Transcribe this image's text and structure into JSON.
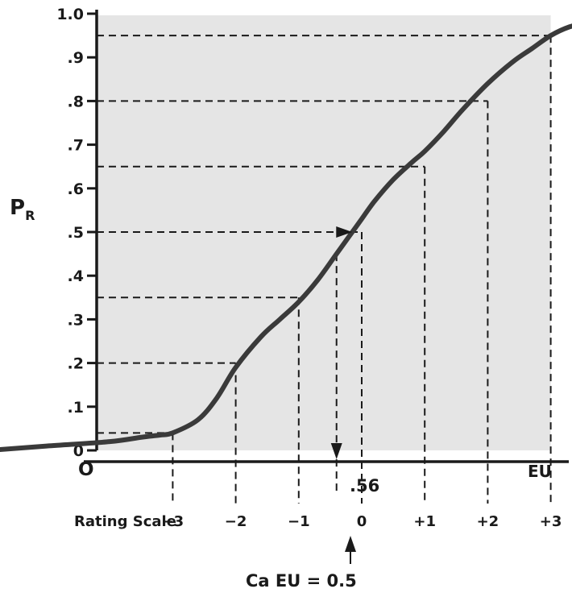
{
  "chart_data": {
    "type": "line",
    "ylabel_main": "P",
    "ylabel_sub": "R",
    "xlabel": "EU",
    "origin_label": "O",
    "y_ticks": [
      {
        "value": 0.0,
        "label": "0"
      },
      {
        "value": 0.1,
        "label": ".1"
      },
      {
        "value": 0.2,
        "label": ".2"
      },
      {
        "value": 0.3,
        "label": ".3"
      },
      {
        "value": 0.4,
        "label": ".4"
      },
      {
        "value": 0.5,
        "label": ".5"
      },
      {
        "value": 0.6,
        "label": ".6"
      },
      {
        "value": 0.7,
        "label": ".7"
      },
      {
        "value": 0.8,
        "label": ".8"
      },
      {
        "value": 0.9,
        "label": ".9"
      },
      {
        "value": 1.0,
        "label": "1.0"
      }
    ],
    "ylim": [
      0,
      1.0
    ],
    "xlim": [
      -5.9,
      4.4
    ],
    "curve": {
      "x": [
        -5.9,
        -5.0,
        -4.0,
        -3.5,
        -3.2,
        -3.0,
        -2.6,
        -2.3,
        -2.0,
        -1.6,
        -1.3,
        -1.0,
        -0.7,
        -0.4,
        -0.2,
        0.0,
        0.2,
        0.5,
        0.8,
        1.0,
        1.3,
        1.6,
        2.0,
        2.4,
        2.7,
        3.0,
        3.3,
        3.6,
        3.9,
        4.2
      ],
      "y": [
        0.0,
        0.01,
        0.02,
        0.03,
        0.035,
        0.04,
        0.07,
        0.12,
        0.19,
        0.26,
        0.3,
        0.34,
        0.39,
        0.45,
        0.49,
        0.53,
        0.57,
        0.62,
        0.66,
        0.685,
        0.73,
        0.78,
        0.84,
        0.89,
        0.92,
        0.95,
        0.97,
        0.98,
        0.99,
        0.99
      ]
    },
    "rating_scale_label": "Rating Scale",
    "rating_points": [
      {
        "eu": -3,
        "p": 0.04,
        "label": "−3"
      },
      {
        "eu": -2,
        "p": 0.2,
        "label": "−2"
      },
      {
        "eu": -1,
        "p": 0.35,
        "label": "−1"
      },
      {
        "eu": 0,
        "p": 0.5,
        "label": "0"
      },
      {
        "eu": 1,
        "p": 0.65,
        "label": "+1"
      },
      {
        "eu": 2,
        "p": 0.8,
        "label": "+2"
      },
      {
        "eu": 3,
        "p": 0.95,
        "label": "+3"
      }
    ],
    "annotation_value": ".56",
    "annotation_eu": -0.4,
    "ca_label": "Ca EU = 0.5"
  }
}
